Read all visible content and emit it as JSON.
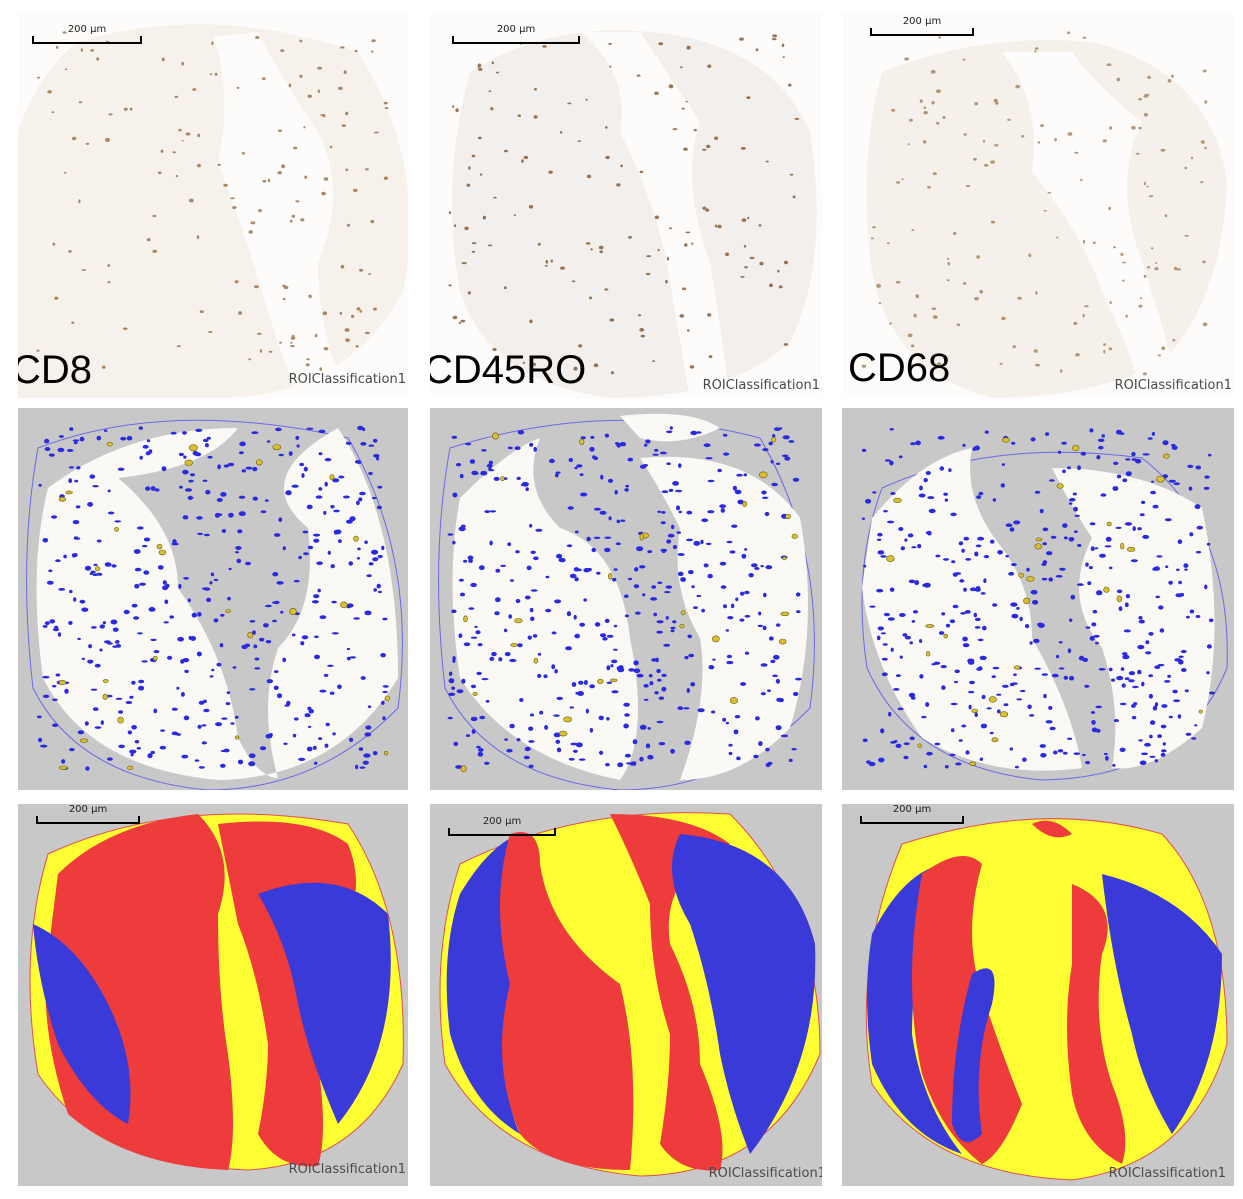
{
  "columns": [
    {
      "marker": "CD8"
    },
    {
      "marker": "CD45RO"
    },
    {
      "marker": "CD68"
    }
  ],
  "scale_bar_label": "200 µm",
  "roi_label": "ROIClassification1",
  "colors": {
    "tissue_bg": "#fbf8f3",
    "stain_brown": "#8a5a2b",
    "detection_blue": "#2a2ae0",
    "detection_yellow": "#d8c030",
    "mask_gray": "#c8c8c8",
    "class_red": "#ee3b3b",
    "class_yellow": "#ffff33",
    "class_blue": "#3a3ad8"
  }
}
